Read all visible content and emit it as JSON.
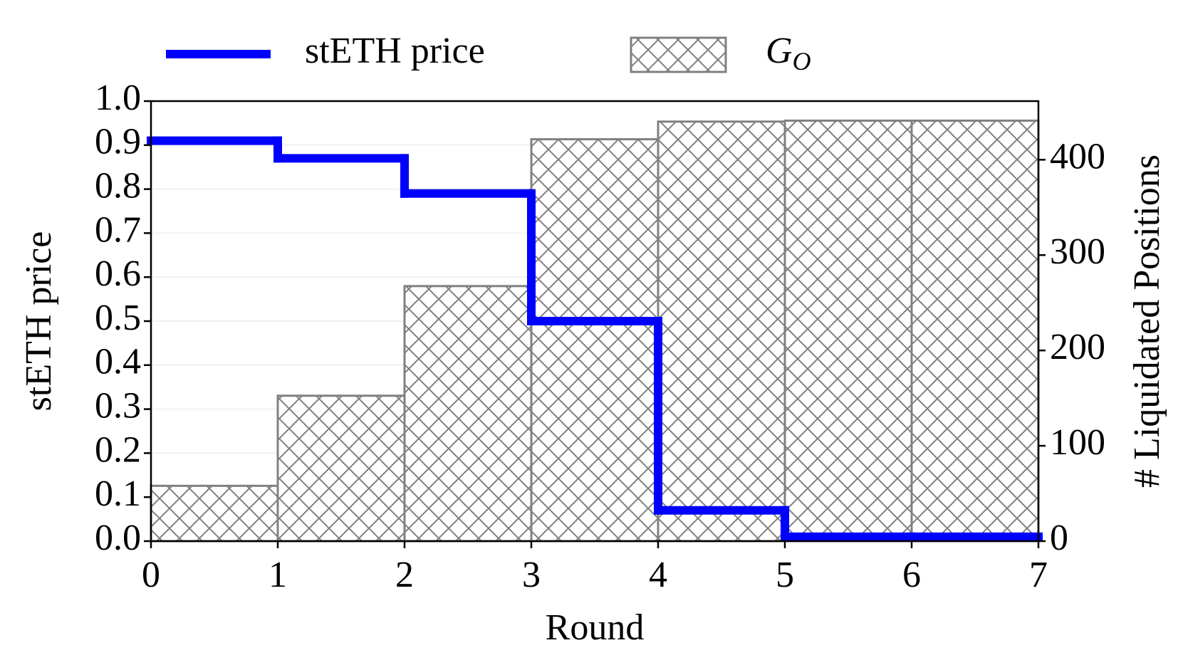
{
  "chart_data": {
    "type": "step-bar",
    "x_label": "Round",
    "y_label": "stETH price",
    "y2_label": "# Liquidated Positions",
    "x": [
      0,
      1,
      2,
      3,
      4,
      5,
      6
    ],
    "series": [
      {
        "name": "stETH price",
        "color": "#0000ff",
        "kind": "step",
        "values": [
          0.91,
          0.87,
          0.79,
          0.5,
          0.07,
          0.01,
          0.01
        ]
      },
      {
        "name": "GO",
        "color": "#808080",
        "kind": "hatched-bar",
        "axis": "y2",
        "values": [
          58,
          152.5,
          267.5,
          421.5,
          440,
          441,
          441
        ]
      }
    ],
    "xlim": [
      0,
      7
    ],
    "xticks": [
      0,
      1,
      2,
      3,
      4,
      5,
      6,
      7
    ],
    "ylim": [
      0,
      1
    ],
    "yticks": [
      {
        "value": 0,
        "label": "0.0"
      },
      0.1,
      0.2,
      0.3,
      0.4,
      0.5,
      0.6,
      0.7,
      0.8,
      0.9,
      {
        "value": 1,
        "label": "1.0"
      }
    ],
    "y2lim": [
      0,
      461.5
    ],
    "y2ticks": [
      0,
      100,
      200,
      300,
      400
    ],
    "grid": true,
    "legend": "top"
  }
}
